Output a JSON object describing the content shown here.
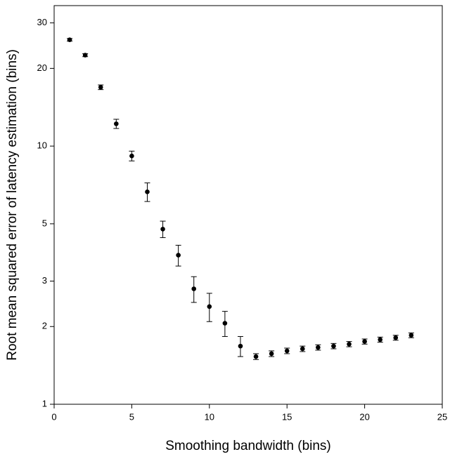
{
  "chart_data": {
    "type": "scatter",
    "x_label": "Smoothing bandwidth (bins)",
    "y_label": "Root mean squared error of latency estimation (bins)",
    "x": [
      1,
      2,
      3,
      4,
      5,
      6,
      7,
      8,
      9,
      10,
      11,
      12,
      13,
      14,
      15,
      16,
      17,
      18,
      19,
      20,
      21,
      22,
      23
    ],
    "values": [
      25.8,
      22.5,
      16.9,
      12.2,
      9.16,
      6.65,
      4.77,
      3.78,
      2.8,
      2.39,
      2.06,
      1.68,
      1.53,
      1.57,
      1.61,
      1.64,
      1.66,
      1.68,
      1.71,
      1.75,
      1.78,
      1.81,
      1.85
    ],
    "errors": [
      0.3,
      0.3,
      0.35,
      0.5,
      0.4,
      0.55,
      0.35,
      0.35,
      0.32,
      0.3,
      0.23,
      0.15,
      0.04,
      0.04,
      0.04,
      0.04,
      0.04,
      0.04,
      0.04,
      0.04,
      0.04,
      0.04,
      0.04
    ],
    "color": "#000000",
    "xlim": [
      0,
      25
    ],
    "xticks": [
      0,
      5,
      10,
      15,
      20,
      25
    ],
    "ylim": [
      1,
      35
    ],
    "yticks": [
      1,
      2,
      3,
      5,
      10,
      20,
      30
    ],
    "log_y": true
  }
}
